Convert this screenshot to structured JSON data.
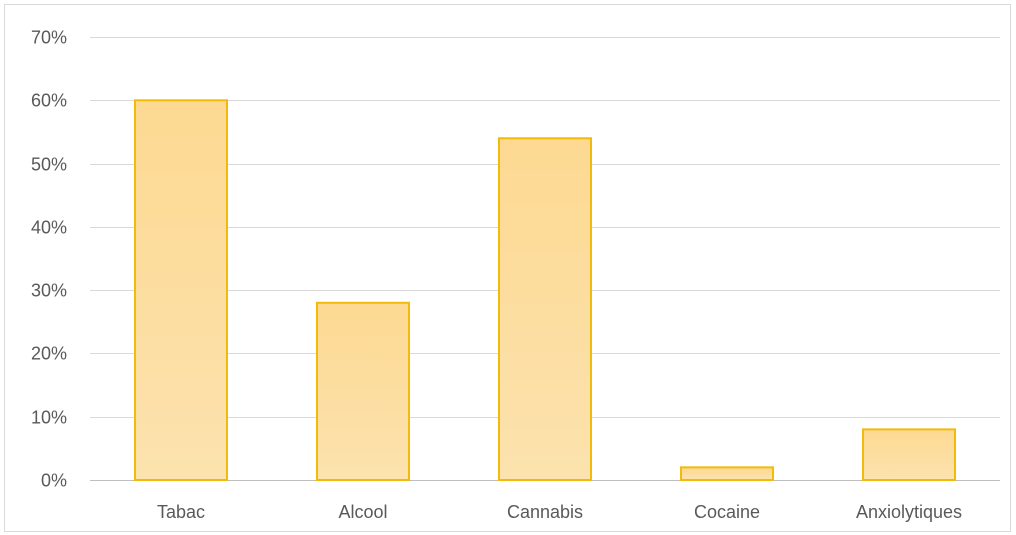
{
  "chart_data": {
    "type": "bar",
    "title": "",
    "xlabel": "",
    "ylabel": "",
    "categories": [
      "Tabac",
      "Alcool",
      "Cannabis",
      "Cocaine",
      "Anxiolytiques"
    ],
    "values": [
      60,
      28,
      54,
      2,
      8
    ],
    "value_unit": "%",
    "ylim": [
      0,
      70
    ],
    "y_ticks": [
      "0%",
      "10%",
      "20%",
      "30%",
      "40%",
      "50%",
      "60%",
      "70%"
    ],
    "y_tick_values": [
      0,
      10,
      20,
      30,
      40,
      50,
      60,
      70
    ],
    "grid": true,
    "legend": "none",
    "colors": {
      "bar_fill_top": "#fdd992",
      "bar_fill_bottom": "#fce2ae",
      "bar_stroke": "#f2bb0b",
      "gridline": "#d9d9d9",
      "text": "#595959"
    }
  }
}
